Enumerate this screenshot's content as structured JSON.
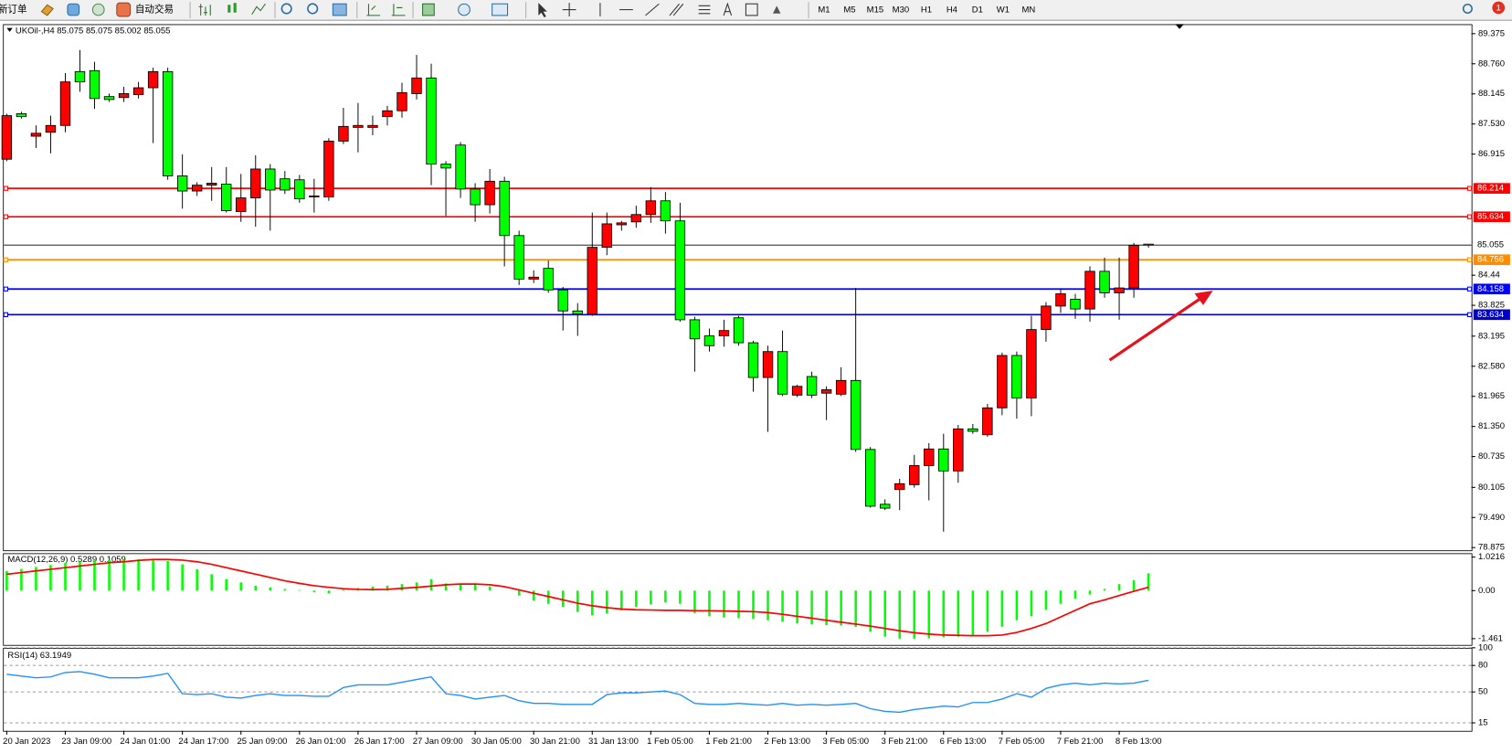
{
  "toolbar": {
    "new_order": "新订单",
    "auto_trading": "自动交易",
    "timeframes": [
      "M1",
      "M5",
      "M15",
      "M30",
      "H1",
      "H4",
      "D1",
      "W1",
      "MN"
    ],
    "alerts": 1
  },
  "chart_data": [
    {
      "type": "candlestick",
      "title": "UKOil-,H4 85.075 85.075 85.002 85.055",
      "categories": [
        "20 Jan 2023",
        null,
        null,
        null,
        "23 Jan 09:00",
        null,
        null,
        null,
        "24 Jan 01:00",
        null,
        null,
        null,
        "24 Jan 17:00",
        null,
        null,
        null,
        "25 Jan 09:00",
        null,
        null,
        null,
        "26 Jan 01:00",
        null,
        null,
        null,
        "26 Jan 17:00",
        null,
        null,
        null,
        "27 Jan 09:00",
        null,
        null,
        null,
        "30 Jan 05:00",
        null,
        null,
        null,
        "30 Jan 21:00",
        null,
        null,
        null,
        "31 Jan 13:00",
        null,
        null,
        null,
        "1 Feb 05:00",
        null,
        null,
        null,
        "1 Feb 21:00",
        null,
        null,
        null,
        "2 Feb 13:00",
        null,
        null,
        null,
        "3 Feb 05:00",
        null,
        null,
        null,
        "3 Feb 21:00",
        null,
        null,
        null,
        "6 Feb 13:00",
        null,
        null,
        null,
        "7 Feb 05:00",
        null,
        null,
        null,
        "7 Feb 21:00",
        null,
        null,
        null,
        "8 Feb 13:00",
        null,
        null
      ],
      "open": [
        86.81,
        87.74,
        87.28,
        87.36,
        87.5,
        88.6,
        88.62,
        88.09,
        88.07,
        88.13,
        88.27,
        88.6,
        86.47,
        86.16,
        86.28,
        86.3,
        85.74,
        86.02,
        86.61,
        86.41,
        86.39,
        86.04,
        86.04,
        87.18,
        87.46,
        87.46,
        87.68,
        87.8,
        88.15,
        88.47,
        86.71,
        87.1,
        86.2,
        85.88,
        86.36,
        85.25,
        84.36,
        84.58,
        84.14,
        83.71,
        83.65,
        85.01,
        85.47,
        85.53,
        85.68,
        85.96,
        85.55,
        83.53,
        83.2,
        83.2,
        83.57,
        83.06,
        82.35,
        82.88,
        81.99,
        82.37,
        82.03,
        82.01,
        82.29,
        80.88,
        79.76,
        80.06,
        80.16,
        80.55,
        80.89,
        80.44,
        81.3,
        81.18,
        81.73,
        82.8,
        81.93,
        83.33,
        83.81,
        83.95,
        83.75,
        84.52,
        84.08,
        84.18,
        85.075
      ],
      "high": [
        87.74,
        87.78,
        87.5,
        87.7,
        88.57,
        89.04,
        88.8,
        88.15,
        88.29,
        88.39,
        88.68,
        88.68,
        86.91,
        86.34,
        86.65,
        86.65,
        86.51,
        86.89,
        86.71,
        86.57,
        86.49,
        86.41,
        87.24,
        87.86,
        87.96,
        87.7,
        87.9,
        88.37,
        88.94,
        88.76,
        86.77,
        87.16,
        86.32,
        86.61,
        86.45,
        85.35,
        84.54,
        84.74,
        84.2,
        83.87,
        85.72,
        85.72,
        85.55,
        85.86,
        86.24,
        86.14,
        85.92,
        83.59,
        83.35,
        83.53,
        83.61,
        83.1,
        83.0,
        83.31,
        82.2,
        82.47,
        82.17,
        82.56,
        84.18,
        80.93,
        79.86,
        80.28,
        80.77,
        81.01,
        81.2,
        81.38,
        81.4,
        81.81,
        82.86,
        82.88,
        83.61,
        83.89,
        84.16,
        84.06,
        84.62,
        84.8,
        84.8,
        85.1,
        85.075
      ],
      "low": [
        86.77,
        87.64,
        87.04,
        86.93,
        87.36,
        88.19,
        87.84,
        87.98,
        87.98,
        88.05,
        87.14,
        86.39,
        85.8,
        86.06,
        85.96,
        85.72,
        85.53,
        85.43,
        85.35,
        86.1,
        85.92,
        85.72,
        85.96,
        87.12,
        86.95,
        87.3,
        87.5,
        87.66,
        88.03,
        86.28,
        85.65,
        86.02,
        85.53,
        85.7,
        84.62,
        84.24,
        84.28,
        84.08,
        83.31,
        83.2,
        83.61,
        84.85,
        85.35,
        85.41,
        85.51,
        85.29,
        83.49,
        82.47,
        82.88,
        82.98,
        83.0,
        82.06,
        81.24,
        81.97,
        81.95,
        81.93,
        81.48,
        81.97,
        80.83,
        79.69,
        79.64,
        79.64,
        80.1,
        79.84,
        79.2,
        80.2,
        81.2,
        81.14,
        81.58,
        81.51,
        81.56,
        83.08,
        83.67,
        83.55,
        83.49,
        83.98,
        83.53,
        83.98,
        85.002
      ],
      "close": [
        87.7,
        87.68,
        87.34,
        87.5,
        88.39,
        88.39,
        88.05,
        88.03,
        88.15,
        88.27,
        88.6,
        86.47,
        86.16,
        86.28,
        86.32,
        85.76,
        86.02,
        86.61,
        86.18,
        86.18,
        86.0,
        86.06,
        87.18,
        87.48,
        87.5,
        87.5,
        87.8,
        88.17,
        88.47,
        86.71,
        86.63,
        86.2,
        85.88,
        86.36,
        85.25,
        84.36,
        84.4,
        84.14,
        83.71,
        83.65,
        85.01,
        85.49,
        85.51,
        85.68,
        85.96,
        85.55,
        83.53,
        83.14,
        83.0,
        83.31,
        83.06,
        82.35,
        82.88,
        82.01,
        82.17,
        81.99,
        82.1,
        82.29,
        80.88,
        79.72,
        79.68,
        80.18,
        80.55,
        80.89,
        80.44,
        81.3,
        81.25,
        81.73,
        82.8,
        81.93,
        83.33,
        83.81,
        84.06,
        83.75,
        84.52,
        84.08,
        84.18,
        85.05,
        85.055
      ],
      "up_color": "#ff0000",
      "down_color": "#00ff00",
      "ylim": [
        78.82,
        89.57
      ],
      "yticks": [
        89.375,
        {
          "value": 88.76,
          "label": "88.760"
        },
        88.145,
        {
          "value": 87.53,
          "label": "87.530"
        },
        86.915,
        84.44,
        83.825,
        83.195,
        {
          "value": 82.58,
          "label": "82.580"
        },
        81.965,
        {
          "value": 81.35,
          "label": "81.350"
        },
        80.735,
        80.105,
        {
          "value": 79.49,
          "label": "79.490"
        },
        78.875
      ],
      "levels": [
        {
          "value": 86.214,
          "color": "#ff0000"
        },
        {
          "value": 85.634,
          "color": "#ff0000"
        },
        {
          "value": 85.055,
          "color": "#000000"
        },
        {
          "value": 84.756,
          "color": "#ff8c00"
        },
        {
          "value": 84.158,
          "color": "#0000ff"
        },
        {
          "value": 83.634,
          "color": "#0000c8"
        }
      ]
    },
    {
      "type": "macd",
      "title": "MACD(12,26,9) 0.5289 0.1059",
      "histogram": {
        "color": "#00ff00",
        "values": [
          0.6,
          0.66,
          0.72,
          0.78,
          0.84,
          0.88,
          0.92,
          0.94,
          0.95,
          0.95,
          0.96,
          0.9,
          0.8,
          0.65,
          0.5,
          0.35,
          0.25,
          0.15,
          0.1,
          0.05,
          0.02,
          -0.05,
          -0.08,
          0.03,
          0.08,
          0.12,
          0.15,
          0.2,
          0.25,
          0.35,
          0.22,
          0.18,
          0.22,
          0.12,
          0.0,
          -0.15,
          -0.3,
          -0.4,
          -0.5,
          -0.65,
          -0.75,
          -0.7,
          -0.6,
          -0.5,
          -0.42,
          -0.36,
          -0.4,
          -0.68,
          -0.78,
          -0.82,
          -0.84,
          -0.86,
          -0.9,
          -0.95,
          -1.0,
          -1.02,
          -1.05,
          -1.06,
          -1.1,
          -1.25,
          -1.4,
          -1.46,
          -1.46,
          -1.45,
          -1.42,
          -1.4,
          -1.36,
          -1.25,
          -1.1,
          -0.9,
          -0.78,
          -0.58,
          -0.4,
          -0.25,
          -0.12,
          0.05,
          0.2,
          0.32,
          0.5289
        ]
      },
      "signal": {
        "color": "#ff0000",
        "values": [
          0.5,
          0.55,
          0.6,
          0.65,
          0.7,
          0.75,
          0.8,
          0.85,
          0.88,
          0.92,
          0.95,
          0.95,
          0.93,
          0.88,
          0.8,
          0.7,
          0.6,
          0.5,
          0.4,
          0.3,
          0.22,
          0.15,
          0.1,
          0.06,
          0.04,
          0.03,
          0.04,
          0.07,
          0.1,
          0.14,
          0.18,
          0.2,
          0.2,
          0.18,
          0.12,
          0.02,
          -0.08,
          -0.18,
          -0.28,
          -0.38,
          -0.46,
          -0.52,
          -0.56,
          -0.58,
          -0.59,
          -0.6,
          -0.6,
          -0.61,
          -0.61,
          -0.62,
          -0.63,
          -0.64,
          -0.67,
          -0.72,
          -0.78,
          -0.84,
          -0.9,
          -0.96,
          -1.02,
          -1.08,
          -1.15,
          -1.22,
          -1.28,
          -1.32,
          -1.35,
          -1.36,
          -1.37,
          -1.37,
          -1.35,
          -1.27,
          -1.15,
          -1.0,
          -0.8,
          -0.6,
          -0.4,
          -0.28,
          -0.15,
          -0.02,
          0.1059
        ]
      },
      "ylim": [
        -1.65,
        1.14
      ],
      "yticks": [
        1.0216,
        {
          "value": 0,
          "label": "0.00"
        },
        -1.461
      ]
    },
    {
      "type": "line",
      "title": "RSI(14) 63.1949",
      "color": "#1e90ff",
      "values": [
        70,
        68,
        66,
        67,
        72,
        73,
        70,
        66,
        66,
        66,
        68,
        71,
        48,
        47,
        48,
        44,
        43,
        46,
        48,
        46,
        46,
        45,
        45,
        55,
        58,
        58,
        58,
        61,
        64,
        67,
        48,
        46,
        42,
        44,
        46,
        40,
        37,
        37,
        36,
        36,
        36,
        47,
        49,
        49,
        50,
        51,
        47,
        37,
        36,
        36,
        37,
        36,
        35,
        37,
        35,
        36,
        35,
        36,
        37,
        31,
        28,
        27,
        30,
        32,
        34,
        33,
        38,
        38,
        42,
        48,
        44,
        54,
        58,
        60,
        58,
        60,
        59,
        60,
        63.1949
      ],
      "ylim": [
        6,
        100
      ],
      "yticks": [
        100,
        80,
        50,
        15
      ],
      "grid": "dashed"
    }
  ]
}
